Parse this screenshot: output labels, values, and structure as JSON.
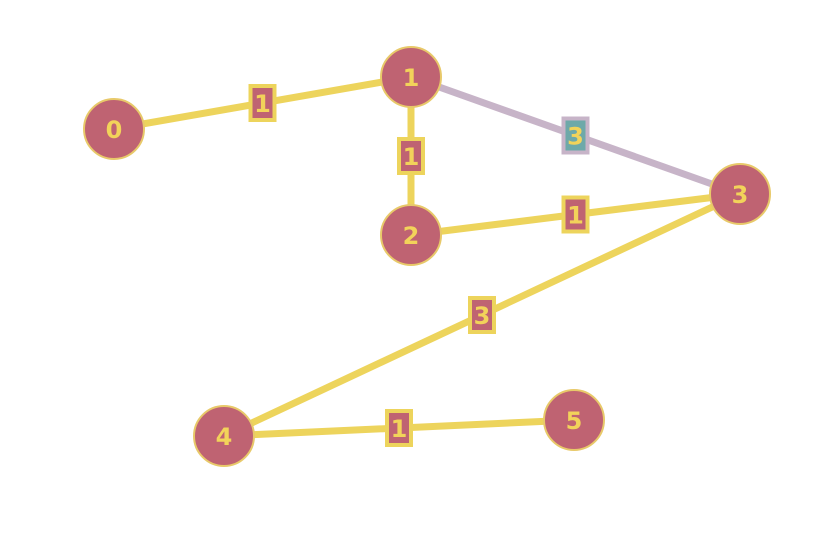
{
  "graph": {
    "colors": {
      "node_fill": "#bf6372",
      "node_stroke": "#e8c96a",
      "label_text": "#f2d35a",
      "edge_default": "#edd45c",
      "edge_highlight": "#c7b4c8",
      "weight_box_default": "#bf6372",
      "weight_box_highlight": "#6ea9a9",
      "weight_box_border_default": "#edd45c",
      "weight_box_border_highlight": "#c7b4c8"
    },
    "nodes": [
      {
        "id": "0",
        "label": "0"
      },
      {
        "id": "1",
        "label": "1"
      },
      {
        "id": "2",
        "label": "2"
      },
      {
        "id": "3",
        "label": "3"
      },
      {
        "id": "4",
        "label": "4"
      },
      {
        "id": "5",
        "label": "5"
      }
    ],
    "edges": [
      {
        "source": "0",
        "target": "1",
        "weight": "1",
        "highlighted": false
      },
      {
        "source": "1",
        "target": "2",
        "weight": "1",
        "highlighted": false
      },
      {
        "source": "1",
        "target": "3",
        "weight": "3",
        "highlighted": true
      },
      {
        "source": "2",
        "target": "3",
        "weight": "1",
        "highlighted": false
      },
      {
        "source": "3",
        "target": "4",
        "weight": "3",
        "highlighted": false
      },
      {
        "source": "4",
        "target": "5",
        "weight": "1",
        "highlighted": false
      }
    ]
  }
}
